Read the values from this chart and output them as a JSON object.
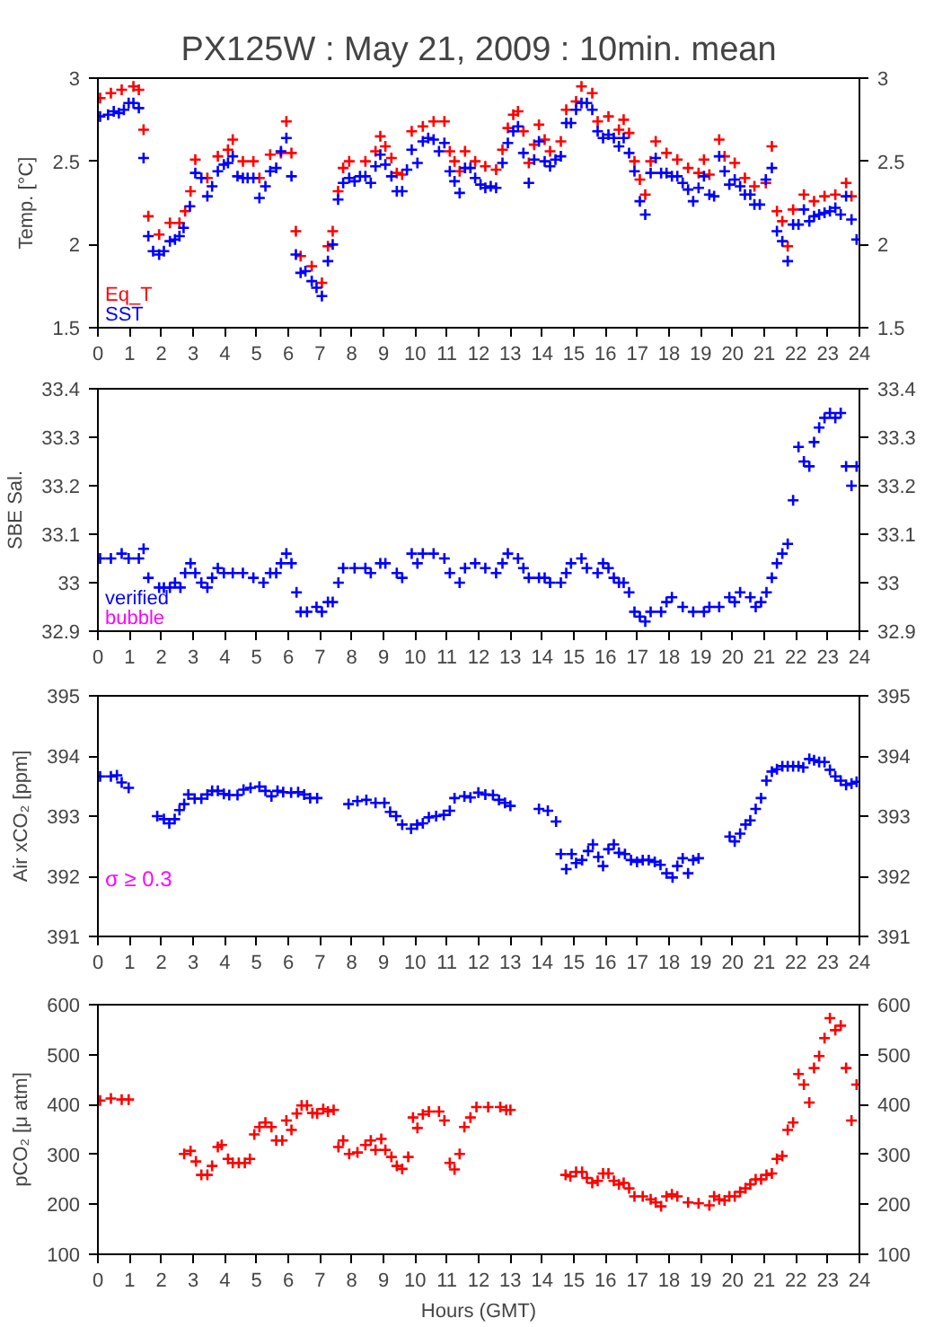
{
  "chart_data": [
    {
      "type": "scatter",
      "title": "PX125W : May 21, 2009 : 10min. mean",
      "ylabel": "Temp. [°C]",
      "xlim": [
        0,
        24
      ],
      "xticks": [
        0,
        1,
        2,
        3,
        4,
        5,
        6,
        7,
        8,
        9,
        10,
        11,
        12,
        13,
        14,
        15,
        16,
        17,
        18,
        19,
        20,
        21,
        22,
        23,
        24
      ],
      "ylim": [
        1.5,
        3
      ],
      "yticks": [
        1.5,
        2,
        2.5,
        3
      ],
      "y2lim": [
        1.5,
        3
      ],
      "y2ticks": [
        1.5,
        2,
        2.5,
        3
      ],
      "marker": "cross",
      "grid": false,
      "legend": "bottom left",
      "series": [
        {
          "name": "Eq_T",
          "color": "#ff0000",
          "x": [
            0.07,
            0.41,
            0.75,
            1.12,
            1.29,
            1.44,
            1.59,
            1.93,
            2.27,
            2.57,
            2.75,
            2.92,
            3.07,
            3.45,
            3.78,
            4.1,
            4.25,
            4.57,
            4.9,
            5.09,
            5.43,
            5.77,
            5.94,
            6.1,
            6.24,
            6.39,
            6.74,
            7.06,
            7.25,
            7.4,
            7.57,
            7.73,
            7.92,
            8.43,
            8.75,
            8.9,
            9.06,
            9.25,
            9.42,
            9.59,
            9.89,
            10.24,
            10.58,
            10.92,
            11.09,
            11.24,
            11.4,
            11.57,
            11.89,
            12.21,
            12.55,
            12.75,
            12.92,
            13.09,
            13.24,
            13.41,
            13.58,
            13.75,
            13.9,
            14.08,
            14.25,
            14.59,
            14.76,
            15.07,
            15.24,
            15.58,
            15.75,
            16.09,
            16.42,
            16.57,
            16.74,
            16.91,
            17.08,
            17.25,
            17.42,
            17.58,
            17.92,
            18.26,
            18.6,
            18.93,
            19.1,
            19.27,
            19.58,
            19.75,
            20.07,
            20.39,
            20.69,
            21.05,
            21.24,
            21.4,
            21.57,
            21.74,
            21.91,
            22.25,
            22.57,
            22.9,
            23.24,
            23.58,
            23.75
          ],
          "values": [
            2.88,
            2.91,
            2.93,
            2.95,
            2.93,
            2.69,
            2.17,
            2.06,
            2.13,
            2.13,
            2.2,
            2.32,
            2.51,
            2.4,
            2.53,
            2.57,
            2.63,
            2.5,
            2.5,
            2.4,
            2.54,
            2.55,
            2.74,
            2.55,
            2.08,
            1.93,
            1.87,
            1.77,
            1.99,
            2.08,
            2.32,
            2.46,
            2.5,
            2.5,
            2.56,
            2.65,
            2.59,
            2.52,
            2.43,
            2.42,
            2.68,
            2.71,
            2.74,
            2.74,
            2.56,
            2.5,
            2.44,
            2.56,
            2.5,
            2.47,
            2.45,
            2.57,
            2.7,
            2.78,
            2.8,
            2.68,
            2.49,
            2.6,
            2.72,
            2.63,
            2.56,
            2.62,
            2.81,
            2.86,
            2.95,
            2.91,
            2.74,
            2.77,
            2.69,
            2.75,
            2.67,
            2.5,
            2.39,
            2.3,
            2.5,
            2.62,
            2.55,
            2.51,
            2.46,
            2.43,
            2.51,
            2.42,
            2.63,
            2.53,
            2.49,
            2.4,
            2.35,
            2.37,
            2.59,
            2.2,
            2.14,
            1.99,
            2.21,
            2.3,
            2.26,
            2.29,
            2.3,
            2.37,
            2.29
          ]
        },
        {
          "name": "SST",
          "color": "#0000ff",
          "x": [
            0.07,
            0.32,
            0.5,
            0.66,
            0.82,
            0.97,
            1.12,
            1.29,
            1.44,
            1.59,
            1.74,
            1.93,
            2.08,
            2.27,
            2.43,
            2.57,
            2.7,
            2.9,
            3.07,
            3.26,
            3.45,
            3.6,
            3.78,
            3.97,
            4.1,
            4.25,
            4.4,
            4.57,
            4.72,
            4.9,
            5.09,
            5.28,
            5.43,
            5.62,
            5.77,
            5.94,
            6.1,
            6.24,
            6.39,
            6.54,
            6.74,
            6.89,
            7.06,
            7.25,
            7.4,
            7.57,
            7.73,
            7.92,
            8.09,
            8.26,
            8.43,
            8.6,
            8.75,
            8.9,
            9.06,
            9.25,
            9.42,
            9.59,
            9.74,
            9.89,
            10.07,
            10.24,
            10.41,
            10.58,
            10.75,
            10.92,
            11.09,
            11.24,
            11.4,
            11.57,
            11.74,
            11.89,
            12.06,
            12.21,
            12.38,
            12.55,
            12.75,
            12.92,
            13.09,
            13.24,
            13.41,
            13.58,
            13.75,
            13.9,
            14.08,
            14.25,
            14.42,
            14.59,
            14.76,
            14.91,
            15.07,
            15.24,
            15.41,
            15.58,
            15.75,
            15.92,
            16.09,
            16.26,
            16.42,
            16.57,
            16.74,
            16.91,
            17.08,
            17.25,
            17.42,
            17.58,
            17.75,
            17.92,
            18.09,
            18.26,
            18.43,
            18.6,
            18.76,
            18.93,
            19.1,
            19.27,
            19.42,
            19.58,
            19.75,
            19.9,
            20.07,
            20.24,
            20.39,
            20.56,
            20.69,
            20.86,
            21.05,
            21.24,
            21.4,
            21.57,
            21.74,
            21.91,
            22.08,
            22.25,
            22.42,
            22.57,
            22.73,
            22.9,
            23.07,
            23.24,
            23.41,
            23.58,
            23.75,
            23.91
          ],
          "values": [
            2.77,
            2.78,
            2.8,
            2.79,
            2.81,
            2.85,
            2.85,
            2.82,
            2.52,
            2.05,
            1.96,
            1.94,
            1.96,
            2.02,
            2.03,
            2.05,
            2.1,
            2.23,
            2.43,
            2.4,
            2.29,
            2.35,
            2.44,
            2.48,
            2.49,
            2.53,
            2.41,
            2.4,
            2.4,
            2.4,
            2.28,
            2.35,
            2.44,
            2.46,
            2.56,
            2.64,
            2.41,
            1.94,
            1.83,
            1.84,
            1.78,
            1.74,
            1.69,
            1.9,
            2.0,
            2.27,
            2.37,
            2.4,
            2.38,
            2.41,
            2.41,
            2.37,
            2.47,
            2.54,
            2.48,
            2.41,
            2.32,
            2.32,
            2.45,
            2.57,
            2.49,
            2.62,
            2.64,
            2.63,
            2.56,
            2.61,
            2.44,
            2.38,
            2.31,
            2.46,
            2.46,
            2.4,
            2.36,
            2.34,
            2.35,
            2.34,
            2.49,
            2.61,
            2.68,
            2.71,
            2.55,
            2.37,
            2.51,
            2.62,
            2.5,
            2.47,
            2.51,
            2.53,
            2.73,
            2.73,
            2.81,
            2.85,
            2.85,
            2.81,
            2.68,
            2.64,
            2.66,
            2.64,
            2.59,
            2.64,
            2.55,
            2.44,
            2.26,
            2.18,
            2.43,
            2.52,
            2.43,
            2.43,
            2.41,
            2.41,
            2.37,
            2.33,
            2.26,
            2.34,
            2.41,
            2.3,
            2.29,
            2.53,
            2.44,
            2.36,
            2.39,
            2.35,
            2.3,
            2.3,
            2.24,
            2.24,
            2.39,
            2.46,
            2.08,
            2.02,
            1.9,
            2.12,
            2.12,
            2.21,
            2.14,
            2.17,
            2.18,
            2.19,
            2.2,
            2.22,
            2.18,
            2.29,
            2.15,
            2.03
          ]
        }
      ]
    },
    {
      "type": "scatter",
      "ylabel": "SBE Sal.",
      "xlim": [
        0,
        24
      ],
      "xticks": [
        0,
        1,
        2,
        3,
        4,
        5,
        6,
        7,
        8,
        9,
        10,
        11,
        12,
        13,
        14,
        15,
        16,
        17,
        18,
        19,
        20,
        21,
        22,
        23,
        24
      ],
      "ylim": [
        32.9,
        33.4
      ],
      "yticks": [
        32.9,
        33,
        33.1,
        33.2,
        33.3,
        33.4
      ],
      "y2lim": [
        32.9,
        33.4
      ],
      "y2ticks": [
        32.9,
        33,
        33.1,
        33.2,
        33.3,
        33.4
      ],
      "marker": "cross",
      "grid": false,
      "legend": "bottom left",
      "series": [
        {
          "name": "verified",
          "color": "#0000ff",
          "x": [
            0.07,
            0.41,
            0.75,
            0.97,
            1.29,
            1.44,
            1.59,
            1.93,
            2.08,
            2.27,
            2.43,
            2.6,
            2.75,
            2.92,
            3.07,
            3.26,
            3.45,
            3.6,
            3.78,
            3.97,
            4.25,
            4.57,
            4.9,
            5.22,
            5.43,
            5.62,
            5.77,
            5.94,
            6.1,
            6.26,
            6.39,
            6.59,
            6.89,
            7.06,
            7.25,
            7.4,
            7.58,
            7.73,
            8.09,
            8.43,
            8.6,
            8.9,
            9.06,
            9.42,
            9.59,
            9.89,
            10.07,
            10.24,
            10.58,
            10.92,
            11.09,
            11.4,
            11.57,
            11.89,
            12.21,
            12.55,
            12.75,
            12.92,
            13.24,
            13.41,
            13.58,
            13.9,
            14.08,
            14.25,
            14.59,
            14.76,
            14.91,
            15.24,
            15.41,
            15.75,
            15.92,
            16.09,
            16.26,
            16.42,
            16.57,
            16.74,
            16.91,
            17.08,
            17.25,
            17.42,
            17.75,
            17.92,
            18.09,
            18.43,
            18.76,
            19.1,
            19.27,
            19.58,
            19.9,
            20.07,
            20.24,
            20.56,
            20.73,
            20.9,
            21.07,
            21.24,
            21.4,
            21.57,
            21.74,
            21.91,
            22.08,
            22.25,
            22.42,
            22.57,
            22.73,
            22.9,
            23.07,
            23.24,
            23.41,
            23.58,
            23.75,
            23.91
          ],
          "values": [
            33.05,
            33.05,
            33.06,
            33.05,
            33.05,
            33.07,
            33.01,
            32.99,
            32.99,
            32.99,
            33.0,
            32.99,
            33.02,
            33.04,
            33.02,
            33.0,
            32.99,
            33.01,
            33.03,
            33.02,
            33.02,
            33.02,
            33.01,
            33.0,
            33.02,
            33.02,
            33.04,
            33.06,
            33.04,
            32.98,
            32.94,
            32.94,
            32.95,
            32.94,
            32.96,
            32.96,
            33.0,
            33.03,
            33.03,
            33.03,
            33.02,
            33.04,
            33.04,
            33.02,
            33.01,
            33.06,
            33.04,
            33.06,
            33.06,
            33.05,
            33.02,
            33.0,
            33.03,
            33.04,
            33.03,
            33.02,
            33.04,
            33.06,
            33.05,
            33.03,
            33.01,
            33.01,
            33.01,
            33.0,
            33.0,
            33.02,
            33.04,
            33.05,
            33.03,
            33.02,
            33.04,
            33.03,
            33.01,
            33.0,
            33.0,
            32.98,
            32.94,
            32.93,
            32.92,
            32.94,
            32.94,
            32.96,
            32.97,
            32.95,
            32.94,
            32.94,
            32.95,
            32.95,
            32.97,
            32.96,
            32.98,
            32.97,
            32.95,
            32.96,
            32.98,
            33.01,
            33.04,
            33.06,
            33.08,
            33.17,
            33.28,
            33.25,
            33.24,
            33.29,
            33.32,
            33.34,
            33.35,
            33.34,
            33.35,
            33.24,
            33.2,
            33.24
          ]
        },
        {
          "name": "bubble",
          "color": "#ff00ff"
        }
      ]
    },
    {
      "type": "scatter",
      "ylabel": "Air xCO₂ [ppm]",
      "xlim": [
        0,
        24
      ],
      "xticks": [
        0,
        1,
        2,
        3,
        4,
        5,
        6,
        7,
        8,
        9,
        10,
        11,
        12,
        13,
        14,
        15,
        16,
        17,
        18,
        19,
        20,
        21,
        22,
        23,
        24
      ],
      "ylim": [
        391,
        395
      ],
      "yticks": [
        391,
        392,
        393,
        394,
        395
      ],
      "y2lim": [
        391,
        395
      ],
      "y2ticks": [
        391,
        392,
        393,
        394,
        395
      ],
      "marker": "cross",
      "grid": false,
      "annotations": [
        "σ ≥ 0.3"
      ],
      "series": [
        {
          "color": "#0000ff",
          "x": [
            0.07,
            0.41,
            0.6,
            0.75,
            0.97,
            1.87,
            2.08,
            2.25,
            2.42,
            2.57,
            2.72,
            2.85,
            3.05,
            3.26,
            3.45,
            3.6,
            3.78,
            3.97,
            4.14,
            4.4,
            4.59,
            4.81,
            5.09,
            5.28,
            5.47,
            5.66,
            5.84,
            6.09,
            6.31,
            6.5,
            6.69,
            6.91,
            7.9,
            8.18,
            8.46,
            8.75,
            9.03,
            9.21,
            9.4,
            9.59,
            9.87,
            10.06,
            10.24,
            10.43,
            10.66,
            10.9,
            11.09,
            11.24,
            11.55,
            11.74,
            11.99,
            12.21,
            12.45,
            12.64,
            12.83,
            13.0,
            13.9,
            14.18,
            14.44,
            14.59,
            14.76,
            14.93,
            15.07,
            15.26,
            15.45,
            15.6,
            15.77,
            15.92,
            16.09,
            16.26,
            16.42,
            16.61,
            16.8,
            16.99,
            17.17,
            17.36,
            17.55,
            17.73,
            17.92,
            18.11,
            18.26,
            18.43,
            18.6,
            18.76,
            18.93,
            19.91,
            20.07,
            20.24,
            20.41,
            20.56,
            20.73,
            20.9,
            21.07,
            21.24,
            21.4,
            21.57,
            21.74,
            21.91,
            22.08,
            22.23,
            22.42,
            22.57,
            22.73,
            22.9,
            23.07,
            23.24,
            23.41,
            23.58,
            23.75,
            23.91
          ],
          "values": [
            393.66,
            393.66,
            393.68,
            393.56,
            393.47,
            393.0,
            392.95,
            392.88,
            392.95,
            393.1,
            393.2,
            393.36,
            393.29,
            393.29,
            393.36,
            393.42,
            393.42,
            393.37,
            393.35,
            393.35,
            393.44,
            393.47,
            393.49,
            393.42,
            393.33,
            393.42,
            393.4,
            393.39,
            393.4,
            393.36,
            393.3,
            393.3,
            393.2,
            393.25,
            393.27,
            393.22,
            393.22,
            393.07,
            393.0,
            392.86,
            392.79,
            392.86,
            392.88,
            392.98,
            393.0,
            393.02,
            393.09,
            393.3,
            393.33,
            393.31,
            393.39,
            393.36,
            393.35,
            393.27,
            393.22,
            393.17,
            393.12,
            393.09,
            392.91,
            392.37,
            392.12,
            392.37,
            392.22,
            392.27,
            392.42,
            392.53,
            392.32,
            392.17,
            392.45,
            392.53,
            392.39,
            392.37,
            392.27,
            392.24,
            392.27,
            392.27,
            392.24,
            392.19,
            392.05,
            391.98,
            392.17,
            392.3,
            392.05,
            392.27,
            392.3,
            392.66,
            392.58,
            392.71,
            392.86,
            392.93,
            393.12,
            393.3,
            393.59,
            393.74,
            393.78,
            393.83,
            393.83,
            393.83,
            393.83,
            393.81,
            393.95,
            393.93,
            393.9,
            393.9,
            393.77,
            393.66,
            393.59,
            393.52,
            393.54,
            393.57
          ]
        }
      ]
    },
    {
      "type": "scatter",
      "ylabel": "pCO₂ [μ atm]",
      "xlabel": "Hours (GMT)",
      "xlim": [
        0,
        24
      ],
      "xticks": [
        0,
        1,
        2,
        3,
        4,
        5,
        6,
        7,
        8,
        9,
        10,
        11,
        12,
        13,
        14,
        15,
        16,
        17,
        18,
        19,
        20,
        21,
        22,
        23,
        24
      ],
      "ylim": [
        100,
        600
      ],
      "yticks": [
        100,
        200,
        300,
        400,
        500,
        600
      ],
      "y2lim": [
        100,
        600
      ],
      "y2ticks": [
        100,
        200,
        300,
        400,
        500,
        600
      ],
      "marker": "cross",
      "grid": false,
      "series": [
        {
          "color": "#ff0000",
          "x": [
            0.07,
            0.41,
            0.75,
            0.97,
            2.72,
            2.92,
            3.09,
            3.26,
            3.45,
            3.6,
            3.78,
            3.9,
            4.1,
            4.25,
            4.44,
            4.63,
            4.79,
            4.93,
            5.09,
            5.28,
            5.47,
            5.62,
            5.81,
            5.94,
            6.1,
            6.27,
            6.42,
            6.59,
            6.76,
            6.91,
            7.1,
            7.25,
            7.43,
            7.58,
            7.73,
            7.92,
            8.18,
            8.43,
            8.6,
            8.75,
            8.93,
            9.06,
            9.25,
            9.42,
            9.59,
            9.78,
            9.93,
            10.07,
            10.24,
            10.43,
            10.75,
            10.92,
            11.09,
            11.24,
            11.4,
            11.55,
            11.74,
            11.93,
            12.3,
            12.68,
            12.87,
            13.0,
            14.74,
            14.89,
            15.07,
            15.26,
            15.41,
            15.58,
            15.75,
            15.92,
            16.09,
            16.26,
            16.42,
            16.57,
            16.74,
            16.91,
            17.17,
            17.42,
            17.58,
            17.75,
            17.92,
            18.09,
            18.26,
            18.6,
            18.93,
            19.27,
            19.42,
            19.58,
            19.75,
            19.9,
            20.07,
            20.24,
            20.41,
            20.56,
            20.73,
            20.9,
            21.07,
            21.24,
            21.4,
            21.57,
            21.74,
            21.91,
            22.08,
            22.25,
            22.42,
            22.57,
            22.73,
            22.9,
            23.07,
            23.24,
            23.41,
            23.58,
            23.75,
            23.91
          ],
          "values": [
            408,
            412,
            410,
            410,
            301,
            307,
            286,
            259,
            259,
            277,
            315,
            319,
            291,
            283,
            283,
            283,
            291,
            340,
            355,
            364,
            355,
            328,
            328,
            368,
            349,
            382,
            398,
            398,
            383,
            382,
            391,
            386,
            389,
            315,
            328,
            301,
            304,
            319,
            328,
            309,
            331,
            309,
            295,
            277,
            271,
            295,
            374,
            353,
            380,
            386,
            386,
            368,
            283,
            270,
            301,
            355,
            374,
            395,
            395,
            395,
            389,
            389,
            259,
            256,
            265,
            265,
            253,
            243,
            247,
            262,
            262,
            247,
            240,
            243,
            232,
            216,
            216,
            210,
            204,
            196,
            216,
            220,
            216,
            204,
            202,
            198,
            216,
            210,
            208,
            216,
            216,
            225,
            232,
            240,
            250,
            250,
            259,
            262,
            291,
            297,
            349,
            364,
            461,
            440,
            404,
            473,
            497,
            533,
            573,
            549,
            558,
            473,
            368,
            440
          ]
        }
      ]
    }
  ]
}
